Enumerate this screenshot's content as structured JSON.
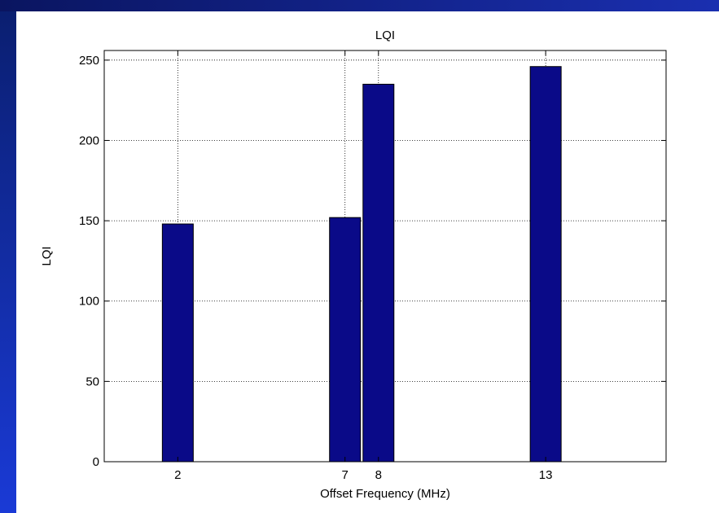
{
  "colors": {
    "bar_fill": "#0a0a88",
    "bar_stroke": "#000000",
    "grid": "#000000",
    "background_top": "#0a1e6e",
    "background_bottom": "#1a3ad6"
  },
  "chart_data": {
    "type": "bar",
    "title": "LQI",
    "xlabel": "Offset Frequency (MHz)",
    "ylabel": "LQI",
    "x": [
      2,
      7,
      8,
      13
    ],
    "values": [
      148,
      152,
      235,
      246
    ],
    "x_ticks": [
      "2",
      "7",
      "8",
      "13"
    ],
    "y_ticks": [
      "0",
      "50",
      "100",
      "150",
      "200",
      "250"
    ],
    "xlim": [
      -0.2,
      16.6
    ],
    "ylim": [
      0,
      256
    ],
    "grid": true
  }
}
